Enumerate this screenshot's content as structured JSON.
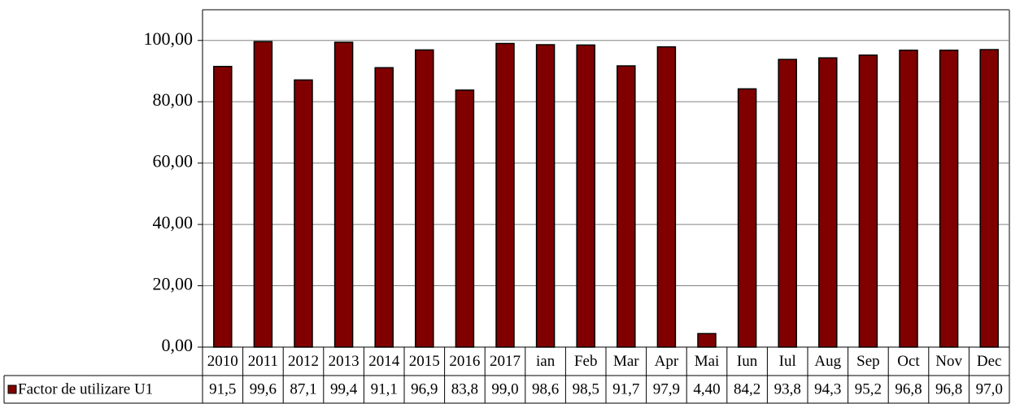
{
  "chart_data": {
    "type": "bar",
    "categories": [
      "2010",
      "2011",
      "2012",
      "2013",
      "2014",
      "2015",
      "2016",
      "2017",
      "ian",
      "Feb",
      "Mar",
      "Apr",
      "Mai",
      "Iun",
      "Iul",
      "Aug",
      "Sep",
      "Oct",
      "Nov",
      "Dec"
    ],
    "series": [
      {
        "name": "Factor de utilizare U1",
        "color": "#800000",
        "values": [
          91.5,
          99.6,
          87.1,
          99.4,
          91.1,
          96.9,
          83.8,
          99.0,
          98.6,
          98.5,
          91.7,
          97.9,
          4.4,
          84.2,
          93.8,
          94.3,
          95.2,
          96.8,
          96.8,
          97.0
        ],
        "value_labels": [
          "91,5",
          "99,6",
          "87,1",
          "99,4",
          "91,1",
          "96,9",
          "83,8",
          "99,0",
          "98,6",
          "98,5",
          "91,7",
          "97,9",
          "4,40",
          "84,2",
          "93,8",
          "94,3",
          "95,2",
          "96,8",
          "96,8",
          "97,0"
        ]
      }
    ],
    "ylim": [
      0,
      110
    ],
    "yticks": [
      {
        "value": 0,
        "label": "0,00"
      },
      {
        "value": 20,
        "label": "20,00"
      },
      {
        "value": 40,
        "label": "40,00"
      },
      {
        "value": 60,
        "label": "60,00"
      },
      {
        "value": 80,
        "label": "80,00"
      },
      {
        "value": 100,
        "label": "100,00"
      }
    ],
    "grid": true
  }
}
